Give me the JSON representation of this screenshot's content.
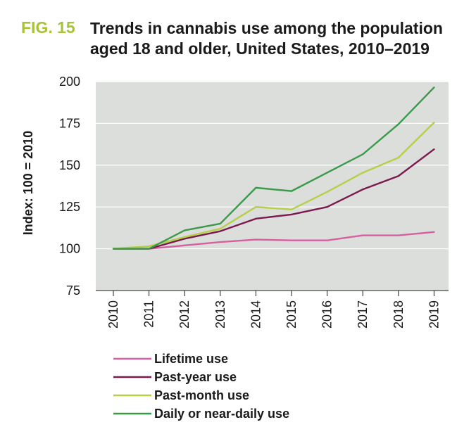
{
  "figure": {
    "label": "FIG. 15",
    "title_line1": "Trends in cannabis use among the population",
    "title_line2": "aged 18 and older, United States, 2010–2019"
  },
  "chart_data": {
    "type": "line",
    "title": "Trends in cannabis use among the population aged 18 and older, United States, 2010–2019",
    "xlabel": "",
    "ylabel": "Index: 100 = 2010",
    "x": [
      "2010",
      "2011",
      "2012",
      "2013",
      "2014",
      "2015",
      "2016",
      "2017",
      "2018",
      "2019"
    ],
    "yticks": [
      75,
      100,
      125,
      150,
      175,
      200
    ],
    "ylim": [
      75,
      200
    ],
    "grid": true,
    "legend_position": "bottom",
    "background": "#dcdedb",
    "series": [
      {
        "name": "Lifetime use",
        "color": "#d55fa0",
        "values": [
          100,
          100,
          102,
          104,
          105.5,
          105,
          105,
          108,
          108,
          110
        ]
      },
      {
        "name": "Past-year use",
        "color": "#7a1a4f",
        "values": [
          100,
          100,
          106,
          110.5,
          118,
          120.5,
          125,
          135.5,
          143.5,
          159.5
        ]
      },
      {
        "name": "Past-month use",
        "color": "#b5cf4a",
        "values": [
          100,
          101.5,
          107,
          112,
          125,
          123.5,
          134,
          145.5,
          154.5,
          175.5
        ]
      },
      {
        "name": "Daily or near-daily use",
        "color": "#3a9a4a",
        "values": [
          100,
          100,
          111,
          115,
          136.5,
          134.5,
          145.5,
          156.5,
          174.5,
          196.5
        ]
      }
    ]
  }
}
